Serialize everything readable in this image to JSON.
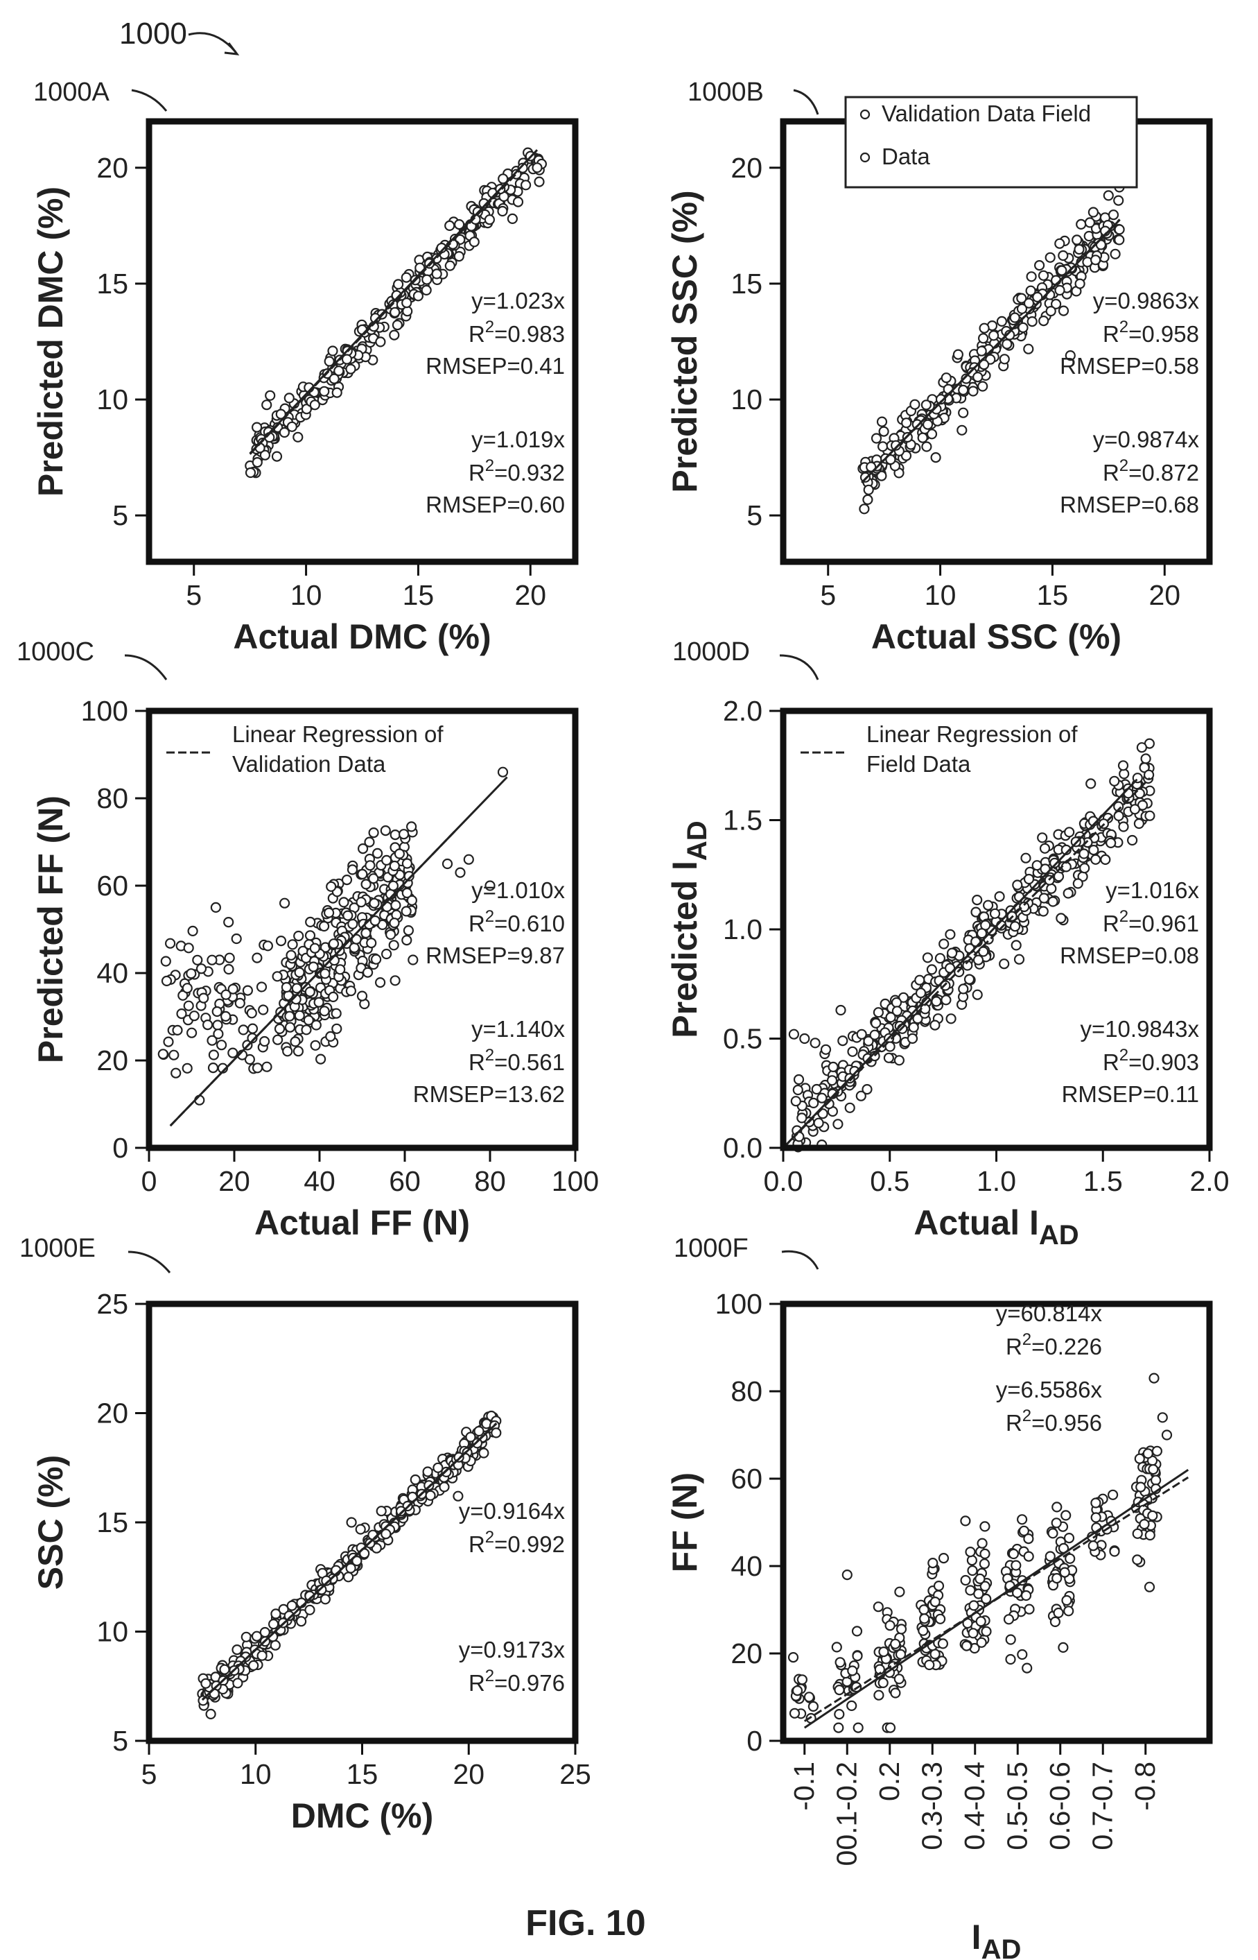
{
  "figure_label": "1000",
  "caption": "FIG. 10",
  "chart_data": [
    {
      "id": "1000A",
      "type": "scatter",
      "xlabel": "Actual DMC (%)",
      "ylabel": "Predicted DMC (%)",
      "xlim": [
        3,
        22
      ],
      "ylim": [
        3,
        22
      ],
      "xticks": [
        5,
        10,
        15,
        20
      ],
      "yticks": [
        5,
        10,
        15,
        20
      ],
      "legend": [],
      "stats": [
        {
          "eq": "y=1.023x",
          "r2": "0.983",
          "rmsep": "RMSEP=0.41"
        },
        {
          "eq": "y=1.019x",
          "r2": "0.932",
          "rmsep": "RMSEP=0.60"
        }
      ],
      "fit_lines": [
        {
          "slope": 1.023,
          "x_range": [
            7.5,
            20.3
          ],
          "style": "solid"
        },
        {
          "slope": 1.019,
          "x_range": [
            7.5,
            19.5
          ],
          "style": "dashed"
        }
      ],
      "scatter": {
        "x_range": [
          7.5,
          20.5
        ],
        "slope": 1.0,
        "spread": 0.5,
        "n": 300,
        "seed": 11
      },
      "points": [
        [
          20,
          20.5
        ],
        [
          20.3,
          20
        ],
        [
          19.2,
          17.8
        ],
        [
          16.4,
          17.5
        ],
        [
          17.5,
          16.8
        ]
      ]
    },
    {
      "id": "1000B",
      "type": "scatter",
      "xlabel": "Actual SSC (%)",
      "ylabel": "Predicted SSC (%)",
      "xlim": [
        3,
        22
      ],
      "ylim": [
        3,
        22
      ],
      "xticks": [
        5,
        10,
        15,
        20
      ],
      "yticks": [
        5,
        10,
        15,
        20
      ],
      "legend": [
        "Validation Data Field",
        "Data"
      ],
      "stats": [
        {
          "eq": "y=0.9863x",
          "r2": "0.958",
          "rmsep": "RMSEP=0.58"
        },
        {
          "eq": "y=0.9874x",
          "r2": "0.872",
          "rmsep": "RMSEP=0.68"
        }
      ],
      "fit_lines": [
        {
          "slope": 0.9863,
          "x_range": [
            6.5,
            18
          ],
          "style": "solid"
        },
        {
          "slope": 0.9874,
          "x_range": [
            6.5,
            18
          ],
          "style": "dashed"
        }
      ],
      "scatter": {
        "x_range": [
          6.5,
          18
        ],
        "slope": 0.99,
        "spread": 0.6,
        "n": 320,
        "seed": 23
      },
      "points": [
        [
          17.5,
          18.8
        ],
        [
          9.8,
          7.5
        ],
        [
          15.8,
          11.9
        ]
      ]
    },
    {
      "id": "1000C",
      "type": "scatter",
      "xlabel": "Actual FF (N)",
      "ylabel": "Predicted FF (N)",
      "xlim": [
        0,
        100
      ],
      "ylim": [
        0,
        100
      ],
      "xticks": [
        0,
        20,
        40,
        60,
        80,
        100
      ],
      "yticks": [
        0,
        20,
        40,
        60,
        80,
        100
      ],
      "legend": [
        "Linear Regression of Validation Data"
      ],
      "stats": [
        {
          "eq": "y=1.010x",
          "r2": "0.610",
          "rmsep": "RMSEP=9.87"
        },
        {
          "eq": "y=1.140x",
          "r2": "0.561",
          "rmsep": "RMSEP=13.62"
        }
      ],
      "fit_lines": [
        {
          "slope": 1.01,
          "x_range": [
            5,
            84
          ],
          "style": "solid"
        },
        {
          "slope": 1.01,
          "x_range": [
            5,
            72
          ],
          "style": "dashed"
        }
      ],
      "scatter": {
        "x_range": [
          30,
          62
        ],
        "slope": 1.0,
        "spread": 8,
        "n": 330,
        "seed": 37
      },
      "scatter_extra": {
        "x_range": [
          3,
          28
        ],
        "slope": 0.0,
        "intercept": 32,
        "spread": 9,
        "n": 90,
        "seed": 41
      },
      "points": [
        [
          83,
          86
        ],
        [
          70,
          65
        ],
        [
          75,
          66
        ],
        [
          80,
          60
        ],
        [
          73,
          63
        ]
      ]
    },
    {
      "id": "1000D",
      "type": "scatter",
      "xlabel": "Actual I",
      "xlabel_sub": "AD",
      "ylabel": "Predicted I",
      "ylabel_sub": "AD",
      "xlim": [
        0,
        2
      ],
      "ylim": [
        0,
        2
      ],
      "xticks": [
        "0.0",
        "0.5",
        "1.0",
        "1.5",
        "2.0"
      ],
      "yticks": [
        "0.0",
        "0.5",
        "1.0",
        "1.5",
        "2.0"
      ],
      "legend": [
        "Linear Regression of Field Data"
      ],
      "stats": [
        {
          "eq": "y=1.016x",
          "r2": "0.961",
          "rmsep": "RMSEP=0.08"
        },
        {
          "eq": "y=10.9843x",
          "r2": "0.903",
          "rmsep": "RMSEP=0.11"
        }
      ],
      "fit_lines": [
        {
          "slope": 1.016,
          "x_range": [
            0,
            1.66
          ],
          "style": "solid"
        },
        {
          "slope": 0.984,
          "x_range": [
            0,
            1.72
          ],
          "style": "dashed"
        }
      ],
      "scatter": {
        "x_range": [
          0.05,
          1.72
        ],
        "slope": 0.95,
        "intercept": 0.05,
        "spread": 0.09,
        "n": 420,
        "seed": 53
      },
      "points": [
        [
          0.05,
          0.52
        ],
        [
          0.1,
          0.5
        ],
        [
          0.15,
          0.48
        ],
        [
          0.2,
          0.45
        ],
        [
          0.27,
          0.63
        ],
        [
          1.72,
          1.52
        ],
        [
          1.65,
          1.55
        ]
      ]
    },
    {
      "id": "1000E",
      "type": "scatter",
      "xlabel": "DMC (%)",
      "ylabel": "SSC (%)",
      "xlim": [
        5,
        25
      ],
      "ylim": [
        5,
        25
      ],
      "xticks": [
        5,
        10,
        15,
        20,
        25
      ],
      "yticks": [
        5,
        10,
        15,
        20,
        25
      ],
      "legend": [],
      "stats": [
        {
          "eq": "y=0.9164x",
          "r2": "0.992",
          "rmsep": ""
        },
        {
          "eq": "y=0.9173x",
          "r2": "0.976",
          "rmsep": ""
        }
      ],
      "fit_lines": [
        {
          "slope": 0.9164,
          "x_range": [
            7.5,
            21.3
          ],
          "style": "solid"
        },
        {
          "slope": 0.9173,
          "x_range": [
            7.5,
            21.3
          ],
          "style": "dashed"
        }
      ],
      "scatter": {
        "x_range": [
          7.5,
          21.3
        ],
        "slope": 0.917,
        "spread": 0.35,
        "n": 330,
        "seed": 67
      },
      "points": [
        [
          14.5,
          15
        ],
        [
          19.5,
          16.2
        ]
      ]
    },
    {
      "id": "1000F",
      "type": "scatter",
      "xlabel": "I",
      "xlabel_sub": "AD",
      "ylabel": "FF (N)",
      "xlim": [
        -0.5,
        9.5
      ],
      "ylim": [
        0,
        100
      ],
      "xtick_labels": [
        "-0.1",
        "00.1-0.2",
        "0.2",
        "0.3-0.3",
        "0.4-0.4",
        "0.5-0.5",
        "0.6-0.6",
        "0.7-0.7",
        "-0.8"
      ],
      "yticks": [
        0,
        20,
        40,
        60,
        80,
        100
      ],
      "legend": [],
      "stats": [
        {
          "eq": "y=60.814x",
          "r2": "0.226",
          "rmsep": ""
        },
        {
          "eq": "y=6.5586x",
          "r2": "0.956",
          "rmsep": ""
        }
      ],
      "fit_lines": [
        {
          "slope": 6.5586,
          "intercept": 3,
          "x_range": [
            0,
            9
          ],
          "style": "solid"
        },
        {
          "slope": 6.2,
          "intercept": 4.5,
          "x_range": [
            0,
            9
          ],
          "style": "dashed"
        }
      ],
      "groups": [
        {
          "x": 0,
          "center": 9,
          "spread": 6,
          "n": 16
        },
        {
          "x": 1,
          "center": 12,
          "spread": 12,
          "n": 24
        },
        {
          "x": 2,
          "center": 18,
          "spread": 14,
          "n": 45
        },
        {
          "x": 3,
          "center": 26,
          "spread": 16,
          "n": 45
        },
        {
          "x": 4,
          "center": 30,
          "spread": 16,
          "n": 45
        },
        {
          "x": 5,
          "center": 35,
          "spread": 14,
          "n": 35
        },
        {
          "x": 6,
          "center": 40,
          "spread": 15,
          "n": 40
        },
        {
          "x": 7,
          "center": 49,
          "spread": 8,
          "n": 22
        },
        {
          "x": 8,
          "center": 55,
          "spread": 14,
          "n": 45
        }
      ],
      "points": [
        [
          8.2,
          83
        ],
        [
          8.4,
          74
        ],
        [
          8.5,
          70
        ],
        [
          1.0,
          38
        ]
      ]
    }
  ]
}
